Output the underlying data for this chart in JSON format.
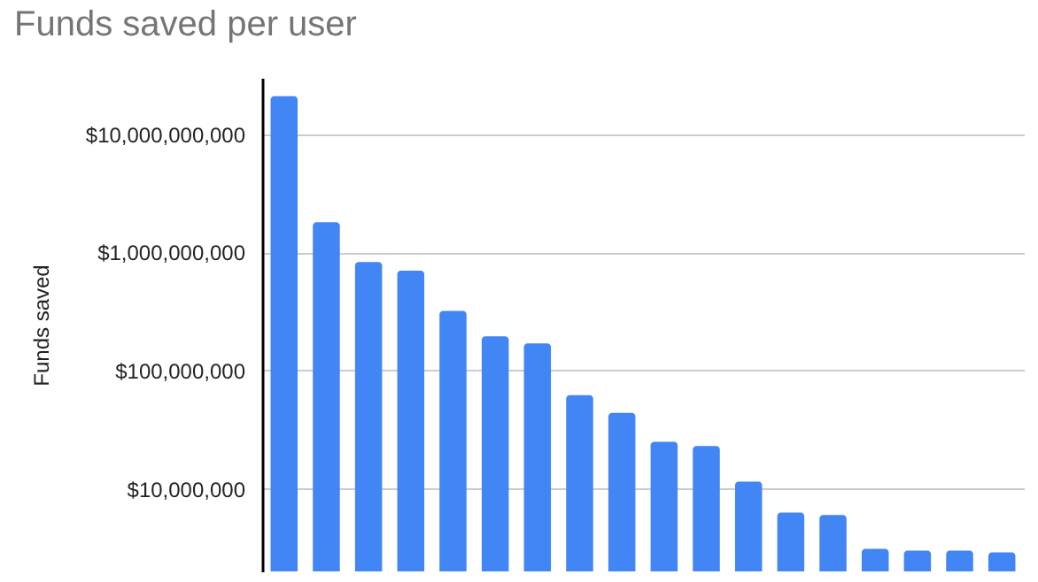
{
  "chart_data": {
    "type": "bar",
    "title": "Funds saved per user",
    "ylabel": "Funds saved",
    "categories": [
      null,
      null,
      null,
      null,
      null,
      null,
      null,
      null,
      null,
      null,
      null,
      null,
      null,
      null,
      null,
      null,
      null,
      null
    ],
    "values": [
      21000000000,
      1800000000,
      830000000,
      700000000,
      320000000,
      195000000,
      170000000,
      62000000,
      44000000,
      25000000,
      23000000,
      11500000,
      6300000,
      6000000,
      3100000,
      3000000,
      3000000,
      2900000
    ],
    "color": "#4285f4",
    "log": "y",
    "grid": "y",
    "ylim": [
      2000000,
      30000000000
    ],
    "yticks": [
      {
        "value": 10000000,
        "label": "$10,000,000"
      },
      {
        "value": 100000000,
        "label": "$100,000,000"
      },
      {
        "value": 1000000000,
        "label": "$1,000,000,000"
      },
      {
        "value": 10000000000,
        "label": "$10,000,000,000"
      }
    ]
  }
}
